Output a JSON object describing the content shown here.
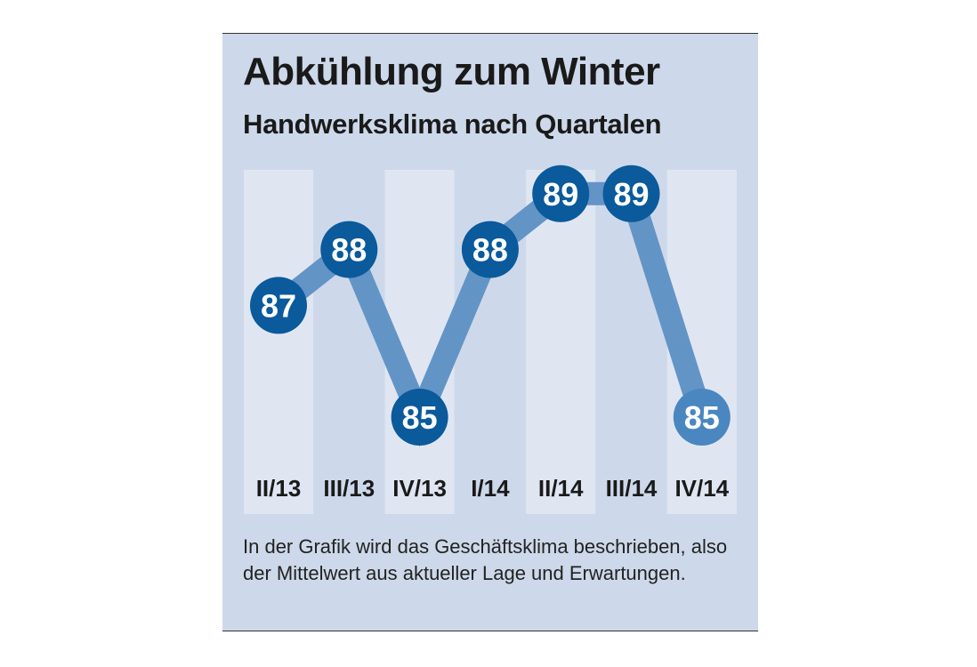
{
  "chart_data": {
    "type": "line",
    "title": "Abkühlung zum Winter",
    "subtitle": "Handwerksklima nach Quartalen",
    "categories": [
      "II/13",
      "III/13",
      "IV/13",
      "I/14",
      "II/14",
      "III/14",
      "IV/14"
    ],
    "values": [
      87,
      88,
      85,
      88,
      89,
      89,
      85
    ],
    "value_labels": [
      "87",
      "88",
      "85",
      "88",
      "89",
      "89",
      "85"
    ],
    "xlabel": "",
    "ylabel": "",
    "ylim": [
      85,
      89
    ],
    "grid": false,
    "colors": {
      "line": "#6394c6",
      "marker": "#0a5a9c",
      "marker_last": "#4a87c0",
      "column": "#dfe6f2",
      "background": "#cdd9ea"
    }
  },
  "footnote": "In der Grafik wird das Geschäftsklima beschrieben, also der Mittelwert aus aktueller Lage und Erwartungen."
}
